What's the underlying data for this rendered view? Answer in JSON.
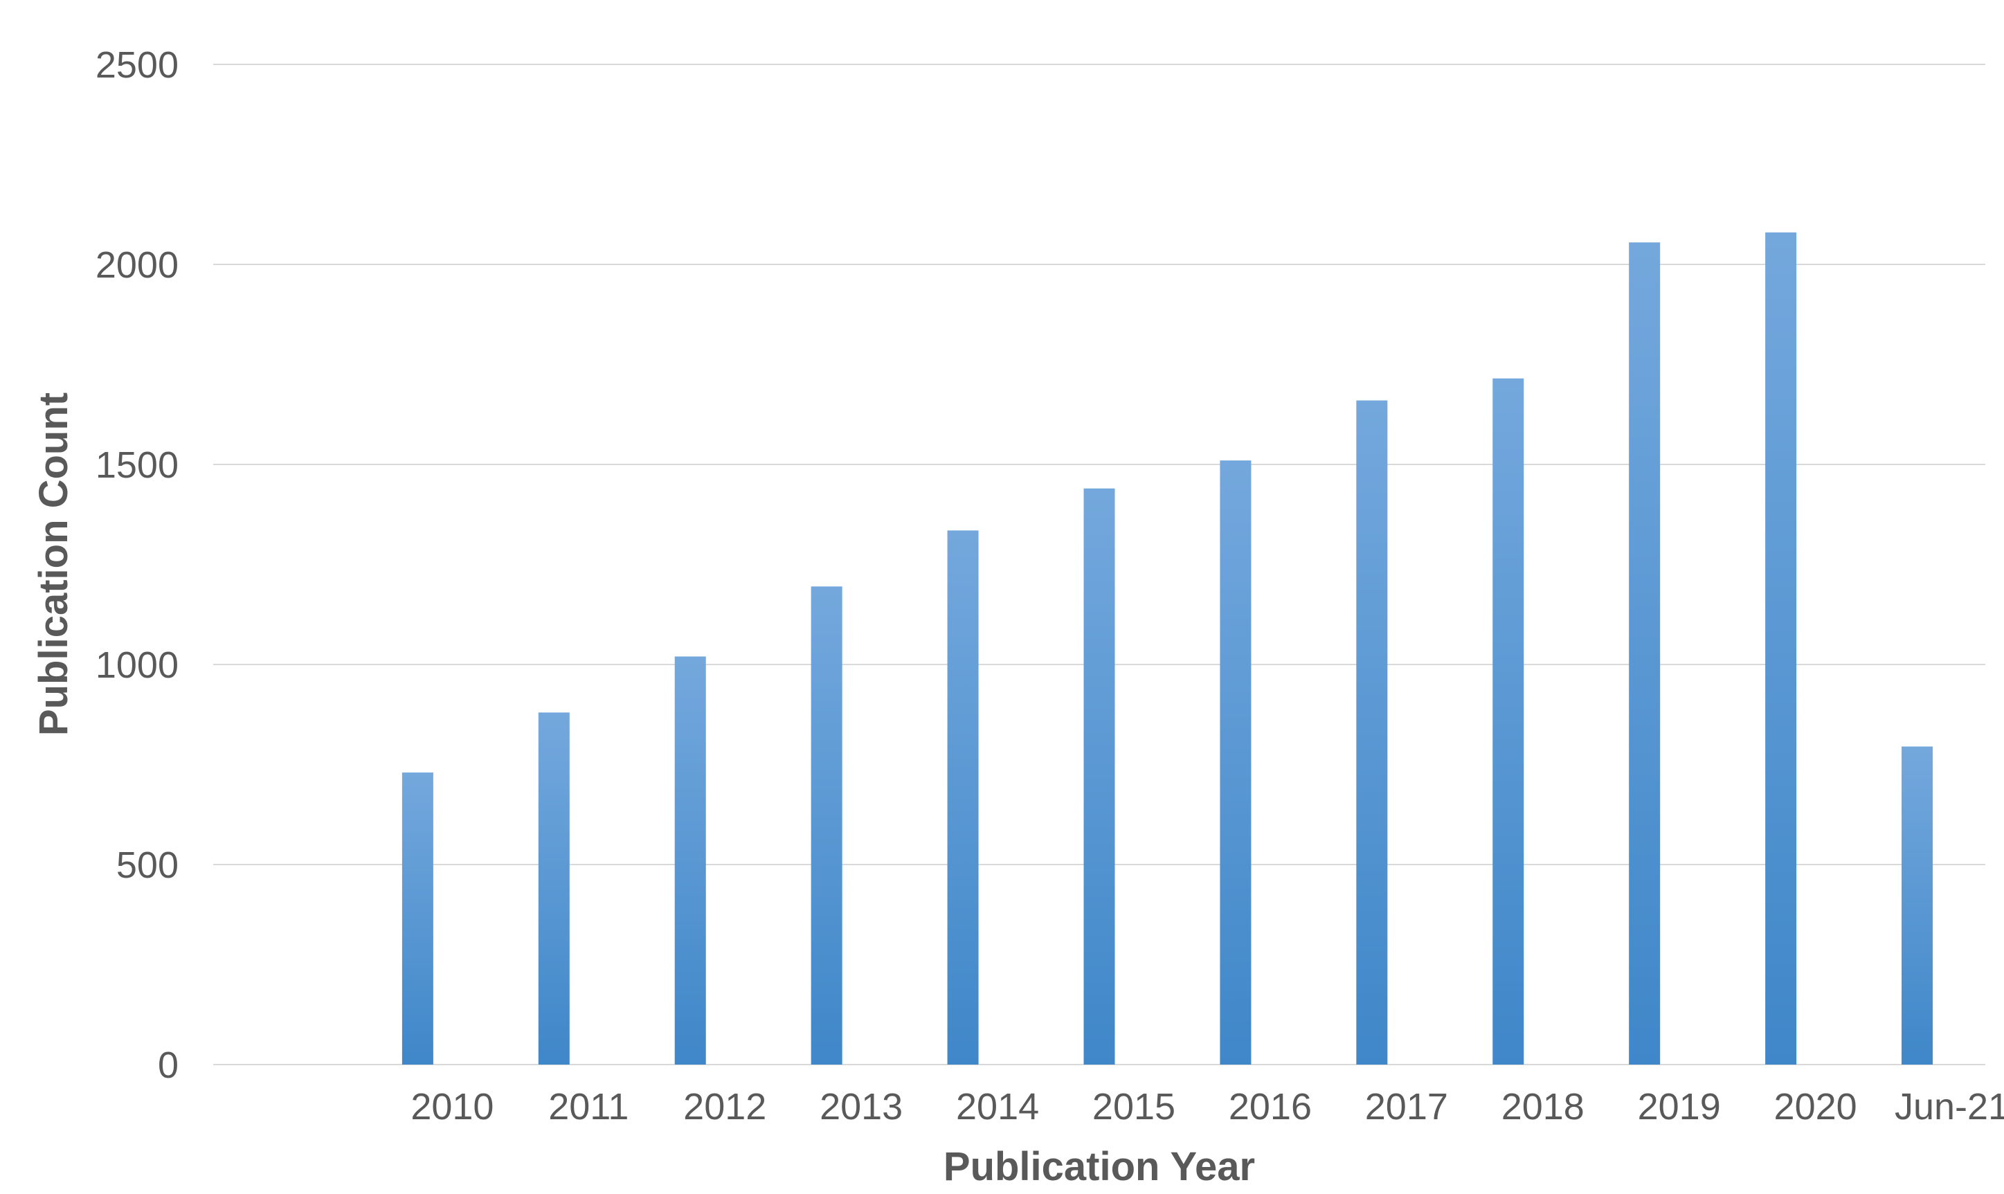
{
  "chart_data": {
    "type": "bar",
    "title": "",
    "xlabel": "Publication Year",
    "ylabel": "Publication Count",
    "categories": [
      "",
      "2010",
      "2011",
      "2012",
      "2013",
      "2014",
      "2015",
      "2016",
      "2017",
      "2018",
      "2019",
      "2020",
      "Jun-21"
    ],
    "values": [
      null,
      730,
      880,
      1020,
      1195,
      1335,
      1440,
      1510,
      1660,
      1715,
      2055,
      2080,
      795
    ],
    "ylim": [
      0,
      2500
    ],
    "yticks": [
      0,
      500,
      1000,
      1500,
      2000,
      2500
    ],
    "grid": true,
    "legend": "none",
    "bar_color_top": "#74a8dd",
    "bar_color_bottom": "#3f87c9",
    "gridline_color": "#d9d9d9",
    "text_color": "#595959"
  }
}
